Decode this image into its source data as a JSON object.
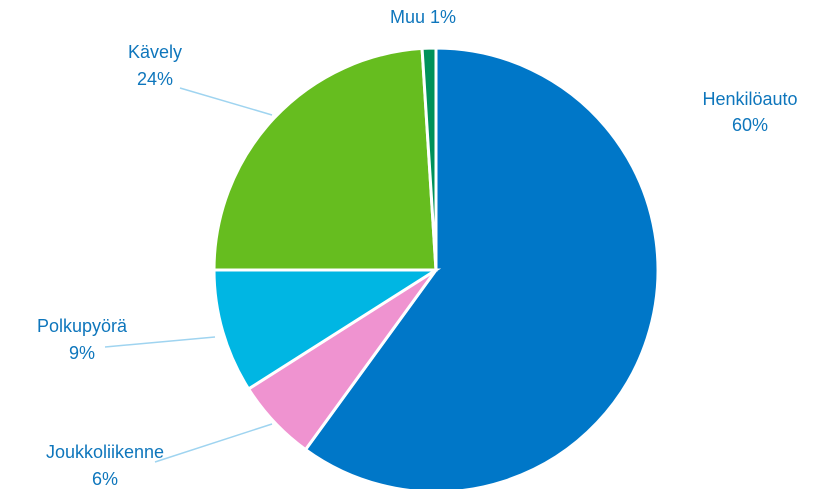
{
  "chart_data": {
    "type": "pie",
    "categories": [
      "Henkilöauto",
      "Joukkoliikenne",
      "Polkupyörä",
      "Kävely",
      "Muu"
    ],
    "values": [
      60,
      6,
      9,
      24,
      1
    ],
    "value_labels": [
      "60%",
      "6%",
      "9%",
      "24%",
      "1%"
    ],
    "colors": [
      "#0077c8",
      "#ef93d0",
      "#00b6e3",
      "#66bd1f",
      "#00915a"
    ]
  }
}
